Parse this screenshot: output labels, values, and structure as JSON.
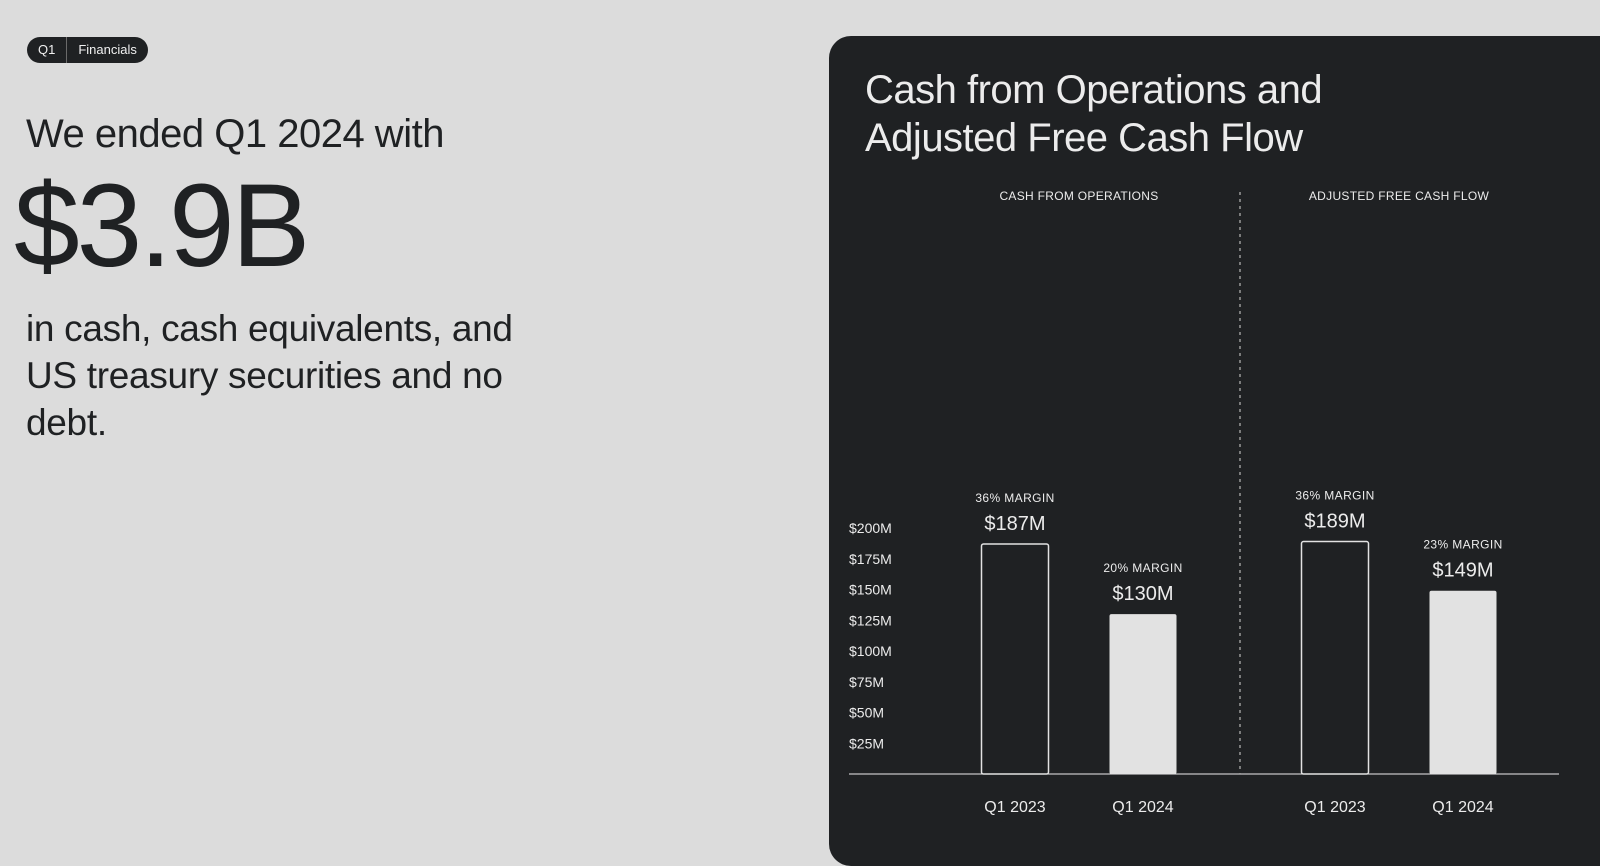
{
  "badge": {
    "section": "Q1",
    "label": "Financials"
  },
  "headline": {
    "lead": "We ended Q1 2024 with",
    "amount": "$3.9B",
    "description": "in cash, cash equivalents, and US treasury securities and no debt."
  },
  "colors": {
    "page_bg": "#dcdcdc",
    "panel_bg": "#1f2123",
    "bar_light": "#e2e2e2",
    "text_light": "#ececec"
  },
  "chart_data": {
    "type": "bar",
    "title": "Cash from Operations and Adjusted Free Cash Flow",
    "ylim": [
      0,
      200
    ],
    "y_ticks": [
      "$25M",
      "$50M",
      "$75M",
      "$100M",
      "$125M",
      "$150M",
      "$175M",
      "$200M"
    ],
    "y_tick_values": [
      25,
      50,
      75,
      100,
      125,
      150,
      175,
      200
    ],
    "grid": false,
    "groups": [
      {
        "name": "CASH FROM OPERATIONS",
        "categories": [
          "Q1 2023",
          "Q1 2024"
        ],
        "values": [
          187,
          130
        ],
        "value_labels": [
          "$187M",
          "$130M"
        ],
        "margins": [
          "36% MARGIN",
          "20% MARGIN"
        ],
        "styles": [
          "outline",
          "filled"
        ]
      },
      {
        "name": "ADJUSTED FREE CASH FLOW",
        "categories": [
          "Q1 2023",
          "Q1 2024"
        ],
        "values": [
          189,
          149
        ],
        "value_labels": [
          "$189M",
          "$149M"
        ],
        "margins": [
          "36% MARGIN",
          "23% MARGIN"
        ],
        "styles": [
          "outline",
          "filled"
        ]
      }
    ]
  }
}
